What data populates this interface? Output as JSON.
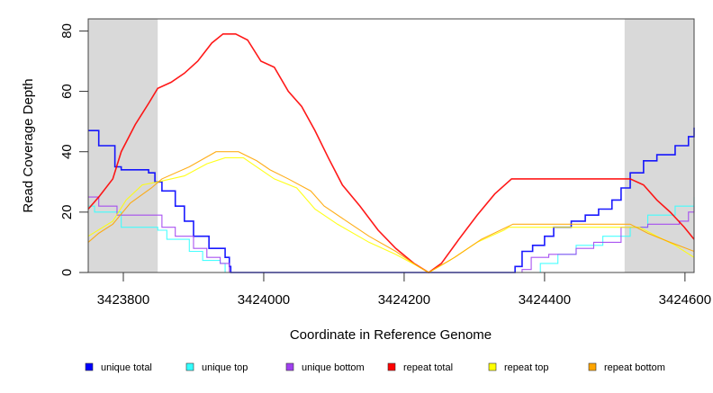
{
  "chart_data": {
    "type": "line",
    "title": "",
    "xlabel": "Coordinate in Reference Genome",
    "ylabel": "Read Coverage Depth",
    "xlim": [
      3423750,
      3424613
    ],
    "ylim": [
      0,
      84
    ],
    "x_ticks": [
      3423800,
      3424000,
      3424200,
      3424400,
      3424600
    ],
    "x_tick_labels": [
      "3423800",
      "3424000",
      "3424200",
      "3424400",
      "3424600"
    ],
    "y_ticks": [
      0,
      20,
      40,
      60,
      80
    ],
    "y_tick_labels": [
      "0",
      "20",
      "40",
      "60",
      "80"
    ],
    "grid": false,
    "legend_placement": "bottom",
    "shaded_regions": [
      [
        3423750,
        3423849
      ],
      [
        3424514,
        3424613
      ]
    ],
    "series": [
      {
        "name": "unique total",
        "color": "#0000ff",
        "step": true,
        "x": [
          3423750,
          3423759,
          3423765,
          3423785,
          3423788,
          3423797,
          3423817,
          3423836,
          3423845,
          3423855,
          3423874,
          3423887,
          3423900,
          3423913,
          3423922,
          3423942,
          3423945,
          3423951,
          3423953,
          3424355,
          3424358,
          3424368,
          3424383,
          3424400,
          3424413,
          3424438,
          3424458,
          3424477,
          3424496,
          3424509,
          3424522,
          3424541,
          3424560,
          3424586,
          3424605,
          3424613
        ],
        "y": [
          47,
          47,
          42,
          42,
          35,
          34,
          34,
          33,
          30,
          27,
          22,
          17,
          12,
          12,
          8,
          8,
          5,
          2,
          0,
          0,
          2,
          7,
          9,
          12,
          15,
          17,
          19,
          21,
          24,
          28,
          33,
          37,
          39,
          42,
          45,
          48
        ]
      },
      {
        "name": "unique top",
        "color": "#33ffff",
        "step": true,
        "x": [
          3423750,
          3423759,
          3423785,
          3423797,
          3423817,
          3423849,
          3423862,
          3423894,
          3423913,
          3423938,
          3423945,
          3424362,
          3424394,
          3424419,
          3424445,
          3424483,
          3424522,
          3424547,
          3424586,
          3424613
        ],
        "y": [
          22,
          20,
          20,
          15,
          15,
          14,
          11,
          7,
          4,
          3,
          0,
          0,
          3,
          6,
          9,
          12,
          15,
          19,
          22,
          25
        ]
      },
      {
        "name": "unique bottom",
        "color": "#a040f0",
        "step": true,
        "x": [
          3423750,
          3423756,
          3423765,
          3423785,
          3423791,
          3423836,
          3423855,
          3423874,
          3423900,
          3423919,
          3423938,
          3423951,
          3424365,
          3424368,
          3424381,
          3424406,
          3424445,
          3424470,
          3424509,
          3424547,
          3424592,
          3424605,
          3424613
        ],
        "y": [
          25,
          25,
          22,
          22,
          19,
          19,
          15,
          12,
          8,
          5,
          3,
          0,
          0,
          1,
          5,
          6,
          8,
          10,
          15,
          16,
          17,
          20,
          22
        ]
      },
      {
        "name": "repeat total",
        "color": "#ff0000",
        "step": false,
        "x": [
          3423750,
          3423765,
          3423785,
          3423797,
          3423817,
          3423836,
          3423849,
          3423868,
          3423887,
          3423906,
          3423926,
          3423942,
          3423960,
          3423977,
          3423996,
          3424015,
          3424035,
          3424054,
          3424073,
          3424092,
          3424112,
          3424137,
          3424163,
          3424188,
          3424214,
          3424235,
          3424253,
          3424278,
          3424304,
          3424329,
          3424353,
          3424522,
          3424541,
          3424560,
          3424579,
          3424599,
          3424613
        ],
        "y": [
          21,
          25,
          31,
          40,
          49,
          56,
          61,
          63,
          66,
          70,
          76,
          79,
          79,
          77,
          70,
          68,
          60,
          55,
          47,
          38,
          29,
          22,
          14,
          8,
          3,
          0,
          3,
          11,
          19,
          26,
          31,
          31,
          29,
          24,
          20,
          15,
          11
        ]
      },
      {
        "name": "repeat top",
        "color": "#ffff00",
        "step": false,
        "x": [
          3423750,
          3423785,
          3423804,
          3423827,
          3423849,
          3423887,
          3423919,
          3423945,
          3423971,
          3423996,
          3424015,
          3424047,
          3424073,
          3424105,
          3424150,
          3424188,
          3424220,
          3424235,
          3424265,
          3424304,
          3424342,
          3424349,
          3424535,
          3424560,
          3424586,
          3424613
        ],
        "y": [
          12,
          17,
          24,
          29,
          30,
          32,
          36,
          38,
          38,
          34,
          31,
          28,
          21,
          16,
          10,
          6,
          2,
          0,
          4,
          10,
          14,
          15,
          15,
          12,
          9,
          5
        ]
      },
      {
        "name": "repeat bottom",
        "color": "#ffa500",
        "step": false,
        "x": [
          3423750,
          3423765,
          3423785,
          3423810,
          3423840,
          3423855,
          3423894,
          3423932,
          3423964,
          3423990,
          3424009,
          3424035,
          3424067,
          3424086,
          3424118,
          3424150,
          3424188,
          3424220,
          3424235,
          3424272,
          3424310,
          3424355,
          3424522,
          3424547,
          3424579,
          3424613
        ],
        "y": [
          10,
          13,
          16,
          23,
          28,
          31,
          35,
          40,
          40,
          37,
          34,
          31,
          27,
          22,
          17,
          12,
          7,
          2,
          0,
          5,
          11,
          16,
          16,
          13,
          10,
          7
        ]
      }
    ]
  }
}
